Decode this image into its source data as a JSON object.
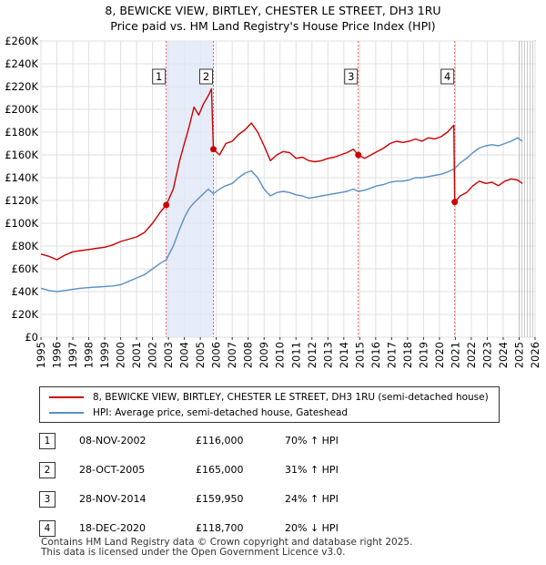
{
  "chart_data": {
    "type": "line",
    "title": "8, BEWICKE VIEW, BIRTLEY, CHESTER LE STREET, DH3 1RU",
    "subtitle": "Price paid vs. HM Land Registry's House Price Index (HPI)",
    "xlabel": "",
    "ylabel": "",
    "xlim": [
      1995,
      2026
    ],
    "ylim": [
      0,
      260000
    ],
    "x_ticks": [
      "1995",
      "1996",
      "1997",
      "1998",
      "1999",
      "2000",
      "2001",
      "2002",
      "2003",
      "2004",
      "2005",
      "2006",
      "2007",
      "2008",
      "2009",
      "2010",
      "2011",
      "2012",
      "2013",
      "2014",
      "2015",
      "2016",
      "2017",
      "2018",
      "2019",
      "2020",
      "2021",
      "2022",
      "2023",
      "2024",
      "2025",
      "2026"
    ],
    "y_ticks": [
      {
        "value": 0,
        "label": "£0"
      },
      {
        "value": 20000,
        "label": "£20K"
      },
      {
        "value": 40000,
        "label": "£40K"
      },
      {
        "value": 60000,
        "label": "£60K"
      },
      {
        "value": 80000,
        "label": "£80K"
      },
      {
        "value": 100000,
        "label": "£100K"
      },
      {
        "value": 120000,
        "label": "£120K"
      },
      {
        "value": 140000,
        "label": "£140K"
      },
      {
        "value": 160000,
        "label": "£160K"
      },
      {
        "value": 180000,
        "label": "£180K"
      },
      {
        "value": 200000,
        "label": "£200K"
      },
      {
        "value": 220000,
        "label": "£220K"
      },
      {
        "value": 240000,
        "label": "£240K"
      },
      {
        "value": 260000,
        "label": "£260K"
      }
    ],
    "projection_start": 2025.0,
    "series": [
      {
        "name": "8, BEWICKE VIEW, BIRTLEY, CHESTER LE STREET, DH3 1RU (semi-detached house)",
        "color": "#cc0000",
        "points": [
          [
            1995.0,
            73000
          ],
          [
            1995.5,
            71000
          ],
          [
            1996.0,
            68000
          ],
          [
            1996.5,
            72000
          ],
          [
            1997.0,
            75000
          ],
          [
            1997.5,
            76000
          ],
          [
            1998.0,
            77000
          ],
          [
            1998.5,
            78000
          ],
          [
            1999.0,
            79000
          ],
          [
            1999.5,
            81000
          ],
          [
            2000.0,
            84000
          ],
          [
            2000.5,
            86000
          ],
          [
            2001.0,
            88000
          ],
          [
            2001.5,
            92000
          ],
          [
            2002.0,
            100000
          ],
          [
            2002.5,
            110000
          ],
          [
            2002.86,
            116000
          ],
          [
            2003.3,
            130000
          ],
          [
            2003.7,
            155000
          ],
          [
            2004.0,
            170000
          ],
          [
            2004.3,
            185000
          ],
          [
            2004.6,
            202000
          ],
          [
            2004.9,
            195000
          ],
          [
            2005.2,
            205000
          ],
          [
            2005.5,
            212000
          ],
          [
            2005.7,
            218000
          ],
          [
            2005.82,
            165000
          ],
          [
            2006.2,
            160000
          ],
          [
            2006.6,
            170000
          ],
          [
            2007.0,
            172000
          ],
          [
            2007.4,
            178000
          ],
          [
            2007.8,
            182000
          ],
          [
            2008.2,
            188000
          ],
          [
            2008.6,
            180000
          ],
          [
            2009.0,
            168000
          ],
          [
            2009.4,
            155000
          ],
          [
            2009.8,
            160000
          ],
          [
            2010.2,
            163000
          ],
          [
            2010.6,
            162000
          ],
          [
            2011.0,
            157000
          ],
          [
            2011.4,
            158000
          ],
          [
            2011.8,
            155000
          ],
          [
            2012.2,
            154000
          ],
          [
            2012.6,
            155000
          ],
          [
            2013.0,
            157000
          ],
          [
            2013.4,
            158000
          ],
          [
            2013.8,
            160000
          ],
          [
            2014.2,
            162000
          ],
          [
            2014.6,
            165000
          ],
          [
            2014.91,
            159950
          ],
          [
            2015.3,
            157000
          ],
          [
            2015.7,
            160000
          ],
          [
            2016.1,
            163000
          ],
          [
            2016.5,
            166000
          ],
          [
            2016.9,
            170000
          ],
          [
            2017.3,
            172000
          ],
          [
            2017.7,
            171000
          ],
          [
            2018.1,
            172000
          ],
          [
            2018.5,
            174000
          ],
          [
            2018.9,
            172000
          ],
          [
            2019.3,
            175000
          ],
          [
            2019.7,
            174000
          ],
          [
            2020.1,
            176000
          ],
          [
            2020.5,
            180000
          ],
          [
            2020.9,
            186000
          ],
          [
            2020.96,
            118700
          ],
          [
            2021.3,
            124000
          ],
          [
            2021.7,
            127000
          ],
          [
            2022.1,
            133000
          ],
          [
            2022.5,
            137000
          ],
          [
            2022.9,
            135000
          ],
          [
            2023.3,
            136000
          ],
          [
            2023.7,
            133000
          ],
          [
            2024.1,
            137000
          ],
          [
            2024.5,
            139000
          ],
          [
            2024.9,
            138000
          ],
          [
            2025.2,
            135000
          ]
        ]
      },
      {
        "name": "HPI: Average price, semi-detached house, Gateshead",
        "color": "#5b8fc9",
        "points": [
          [
            1995.0,
            43000
          ],
          [
            1995.5,
            41000
          ],
          [
            1996.0,
            40000
          ],
          [
            1996.5,
            41000
          ],
          [
            1997.0,
            42000
          ],
          [
            1997.5,
            43000
          ],
          [
            1998.0,
            43500
          ],
          [
            1998.5,
            44000
          ],
          [
            1999.0,
            44500
          ],
          [
            1999.5,
            45000
          ],
          [
            2000.0,
            46000
          ],
          [
            2000.5,
            49000
          ],
          [
            2001.0,
            52000
          ],
          [
            2001.5,
            55000
          ],
          [
            2002.0,
            60000
          ],
          [
            2002.5,
            65000
          ],
          [
            2002.86,
            68000
          ],
          [
            2003.3,
            80000
          ],
          [
            2003.7,
            95000
          ],
          [
            2004.0,
            105000
          ],
          [
            2004.3,
            113000
          ],
          [
            2004.6,
            118000
          ],
          [
            2004.9,
            122000
          ],
          [
            2005.2,
            126000
          ],
          [
            2005.5,
            130000
          ],
          [
            2005.82,
            126000
          ],
          [
            2006.2,
            130000
          ],
          [
            2006.6,
            133000
          ],
          [
            2007.0,
            135000
          ],
          [
            2007.4,
            140000
          ],
          [
            2007.8,
            144000
          ],
          [
            2008.2,
            146000
          ],
          [
            2008.6,
            140000
          ],
          [
            2009.0,
            130000
          ],
          [
            2009.4,
            124000
          ],
          [
            2009.8,
            127000
          ],
          [
            2010.2,
            128000
          ],
          [
            2010.6,
            127000
          ],
          [
            2011.0,
            125000
          ],
          [
            2011.4,
            124000
          ],
          [
            2011.8,
            122000
          ],
          [
            2012.2,
            123000
          ],
          [
            2012.6,
            124000
          ],
          [
            2013.0,
            125000
          ],
          [
            2013.4,
            126000
          ],
          [
            2013.8,
            127000
          ],
          [
            2014.2,
            128000
          ],
          [
            2014.6,
            130000
          ],
          [
            2014.91,
            128000
          ],
          [
            2015.3,
            129000
          ],
          [
            2015.7,
            131000
          ],
          [
            2016.1,
            133000
          ],
          [
            2016.5,
            134000
          ],
          [
            2016.9,
            136000
          ],
          [
            2017.3,
            137000
          ],
          [
            2017.7,
            137000
          ],
          [
            2018.1,
            138000
          ],
          [
            2018.5,
            140000
          ],
          [
            2018.9,
            140000
          ],
          [
            2019.3,
            141000
          ],
          [
            2019.7,
            142000
          ],
          [
            2020.1,
            143000
          ],
          [
            2020.5,
            145000
          ],
          [
            2020.96,
            148000
          ],
          [
            2021.3,
            153000
          ],
          [
            2021.7,
            157000
          ],
          [
            2022.1,
            162000
          ],
          [
            2022.5,
            166000
          ],
          [
            2022.9,
            168000
          ],
          [
            2023.3,
            169000
          ],
          [
            2023.7,
            168000
          ],
          [
            2024.1,
            170000
          ],
          [
            2024.5,
            172000
          ],
          [
            2024.9,
            175000
          ],
          [
            2025.2,
            172000
          ]
        ]
      }
    ],
    "markers": [
      {
        "label": "1",
        "x": 2002.86,
        "y": 116000
      },
      {
        "label": "2",
        "x": 2005.82,
        "y": 165000
      },
      {
        "label": "3",
        "x": 2014.91,
        "y": 159950
      },
      {
        "label": "4",
        "x": 2020.96,
        "y": 118700
      }
    ]
  },
  "legend": [
    {
      "label": "8, BEWICKE VIEW, BIRTLEY, CHESTER LE STREET, DH3 1RU (semi-detached house)",
      "color": "#cc0000"
    },
    {
      "label": "HPI: Average price, semi-detached house, Gateshead",
      "color": "#5b8fc9"
    }
  ],
  "sales": [
    {
      "num": "1",
      "date": "08-NOV-2002",
      "price": "£116,000",
      "hpi": "70% ↑ HPI"
    },
    {
      "num": "2",
      "date": "28-OCT-2005",
      "price": "£165,000",
      "hpi": "31% ↑ HPI"
    },
    {
      "num": "3",
      "date": "28-NOV-2014",
      "price": "£159,950",
      "hpi": "24% ↑ HPI"
    },
    {
      "num": "4",
      "date": "18-DEC-2020",
      "price": "£118,700",
      "hpi": "20% ↓ HPI"
    }
  ],
  "footer": {
    "line1": "Contains HM Land Registry data © Crown copyright and database right 2025.",
    "line2": "This data is licensed under the Open Government Licence v3.0."
  }
}
